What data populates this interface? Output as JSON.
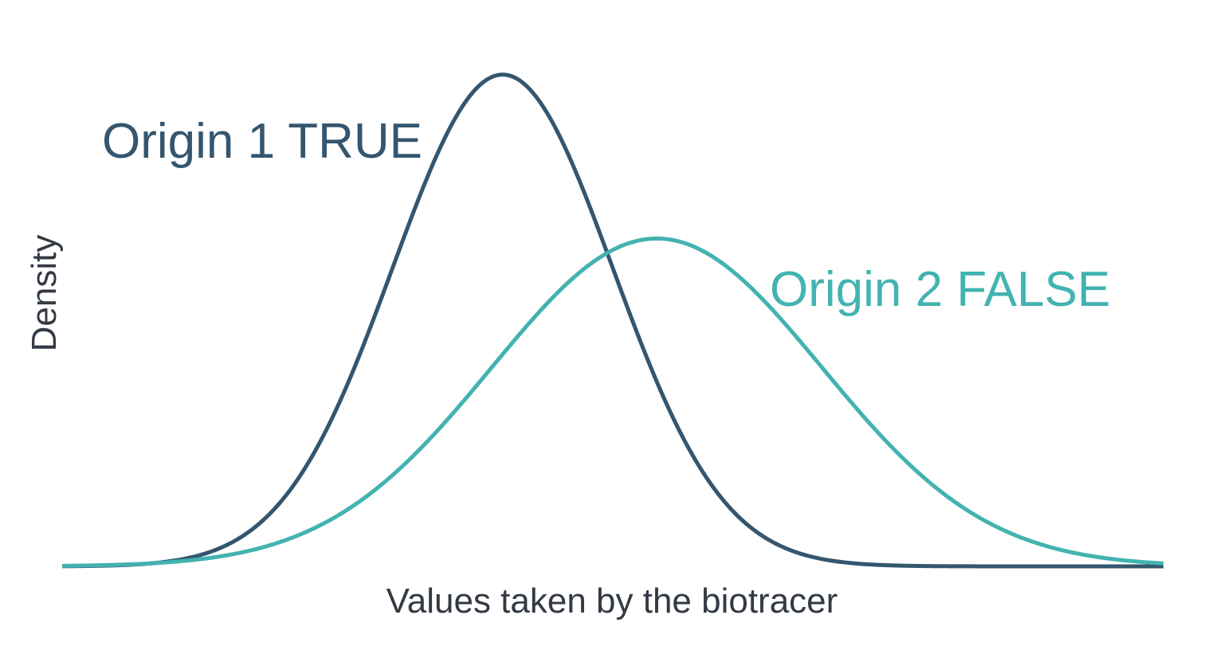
{
  "chart_data": {
    "type": "line",
    "title": "",
    "xlabel": "Values taken by the biotracer",
    "ylabel": "Density",
    "xlim": [
      -4,
      6
    ],
    "ylim": [
      0,
      0.4
    ],
    "grid": false,
    "axis_ticks": false,
    "series": [
      {
        "name": "Origin 1 TRUE",
        "color": "#34566f",
        "distribution": "normal",
        "mean": 0,
        "sd": 1
      },
      {
        "name": "Origin 2 FALSE",
        "color": "#42b3b0",
        "distribution": "normal",
        "mean": 1.4,
        "sd": 1.5
      }
    ]
  }
}
